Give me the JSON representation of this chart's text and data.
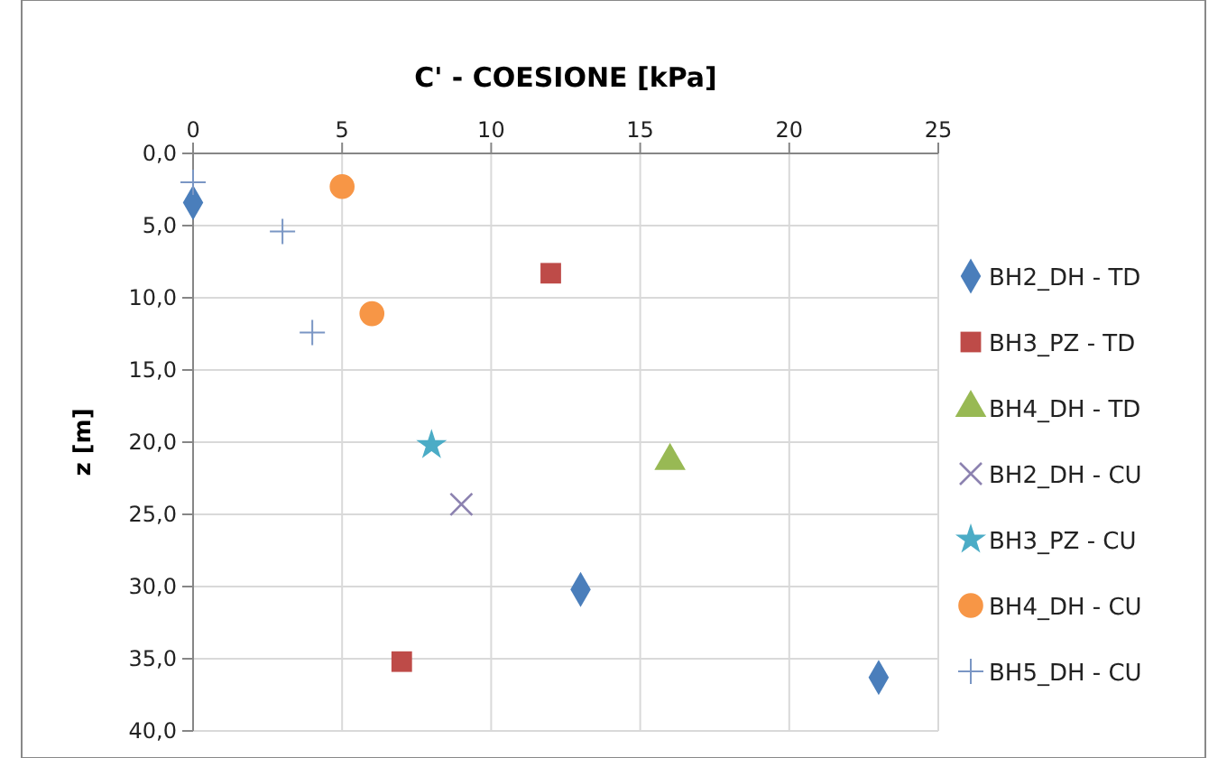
{
  "chart_data": {
    "type": "scatter",
    "title": "C' - COESIONE [kPa]",
    "ylabel": "z [m]",
    "xlim": [
      0,
      25
    ],
    "xticks": [
      0,
      5,
      10,
      15,
      20,
      25
    ],
    "ylim": [
      40,
      0
    ],
    "yticks": [
      {
        "value": 0,
        "label": "0,0"
      },
      {
        "value": 5,
        "label": "5,0"
      },
      {
        "value": 10,
        "label": "10,0"
      },
      {
        "value": 15,
        "label": "15,0"
      },
      {
        "value": 20,
        "label": "20,0"
      },
      {
        "value": 25,
        "label": "25,0"
      },
      {
        "value": 30,
        "label": "30,0"
      },
      {
        "value": 35,
        "label": "35,0"
      },
      {
        "value": 40,
        "label": "40,0"
      }
    ],
    "grid": true,
    "legend": "right",
    "series": [
      {
        "name": "BH2_DH - TD",
        "color": "#4a7ebb",
        "marker": "diamond",
        "x": [
          0,
          13,
          23
        ],
        "values": [
          3.4,
          30.2,
          36.3
        ]
      },
      {
        "name": "BH3_PZ - TD",
        "color": "#be4b48",
        "marker": "square",
        "x": [
          12,
          7
        ],
        "values": [
          8.3,
          35.2
        ]
      },
      {
        "name": "BH4_DH - TD",
        "color": "#98b954",
        "marker": "triangle",
        "x": [
          16
        ],
        "values": [
          21.3
        ]
      },
      {
        "name": "BH2_DH - CU",
        "color": "#8c82b0",
        "marker": "cross",
        "x": [
          9
        ],
        "values": [
          24.3
        ]
      },
      {
        "name": "BH3_PZ - CU",
        "color": "#4bacc6",
        "marker": "star",
        "x": [
          8
        ],
        "values": [
          20.2
        ]
      },
      {
        "name": "BH4_DH - CU",
        "color": "#f79646",
        "marker": "circle",
        "x": [
          5,
          6
        ],
        "values": [
          2.3,
          11.1
        ]
      },
      {
        "name": "BH5_DH - CU",
        "color": "#7a96c4",
        "marker": "plus",
        "x": [
          0,
          3,
          4
        ],
        "values": [
          2.0,
          5.4,
          12.4
        ]
      }
    ]
  }
}
